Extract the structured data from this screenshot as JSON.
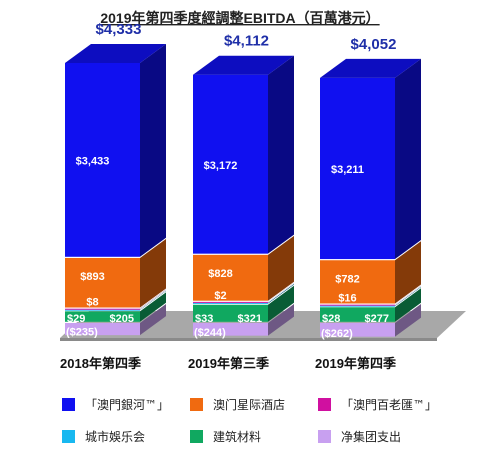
{
  "chart_data": {
    "type": "bar",
    "stacked": true,
    "title": "2019年第四季度經調整EBITDA（百萬港元）",
    "categories": [
      "2018年第四季",
      "2019年第三季",
      "2019年第四季"
    ],
    "totals": [
      "$4,333",
      "$4,112",
      "$4,052"
    ],
    "total_values": [
      4333,
      4112,
      4052
    ],
    "series": [
      {
        "name": "「澳門銀河™」",
        "color": "#1010f0",
        "values": [
          3433,
          3172,
          3211
        ],
        "labels": [
          "$3,433",
          "$3,172",
          "$3,211"
        ]
      },
      {
        "name": "澳门星际酒店",
        "color": "#f06a10",
        "values": [
          893,
          828,
          782
        ],
        "labels": [
          "$893",
          "$828",
          "$782"
        ]
      },
      {
        "name": "「澳門百老匯™」",
        "color": "#d010a0",
        "values": [
          8,
          2,
          16
        ],
        "labels": [
          "$8",
          "$2",
          "$16"
        ]
      },
      {
        "name": "城市娛乐会",
        "color": "#18b8f0",
        "values": [
          29,
          33,
          28
        ],
        "labels": [
          "$29",
          "$33",
          "$28"
        ]
      },
      {
        "name": "建筑材料",
        "color": "#10a860",
        "values": [
          205,
          321,
          277
        ],
        "labels": [
          "$205",
          "$321",
          "$277"
        ]
      },
      {
        "name": "净集团支出",
        "color": "#c8a0f0",
        "values": [
          -235,
          -244,
          -262
        ],
        "labels": [
          "($235)",
          "($244)",
          "($262)"
        ]
      }
    ],
    "legend_position": "bottom",
    "grid": false
  }
}
